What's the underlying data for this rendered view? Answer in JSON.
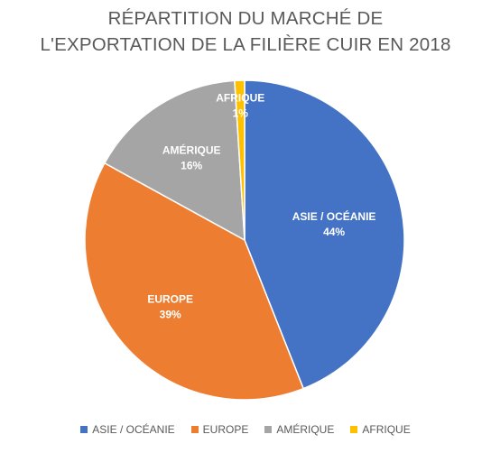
{
  "chart_data": {
    "type": "pie",
    "title_line1": "RÉPARTITION DU MARCHÉ DE",
    "title_line2": "L'EXPORTATION DE LA FILIÈRE CUIR EN 2018",
    "slices": [
      {
        "label": "ASIE / OCÉANIE",
        "value": 44,
        "display": "44%",
        "color": "#4472C4"
      },
      {
        "label": "EUROPE",
        "value": 39,
        "display": "39%",
        "color": "#ED7D31"
      },
      {
        "label": "AMÉRIQUE",
        "value": 16,
        "display": "16%",
        "color": "#A5A5A5"
      },
      {
        "label": "AFRIQUE",
        "value": 1,
        "display": "1%",
        "color": "#FFC000"
      }
    ],
    "legend_position": "bottom"
  }
}
